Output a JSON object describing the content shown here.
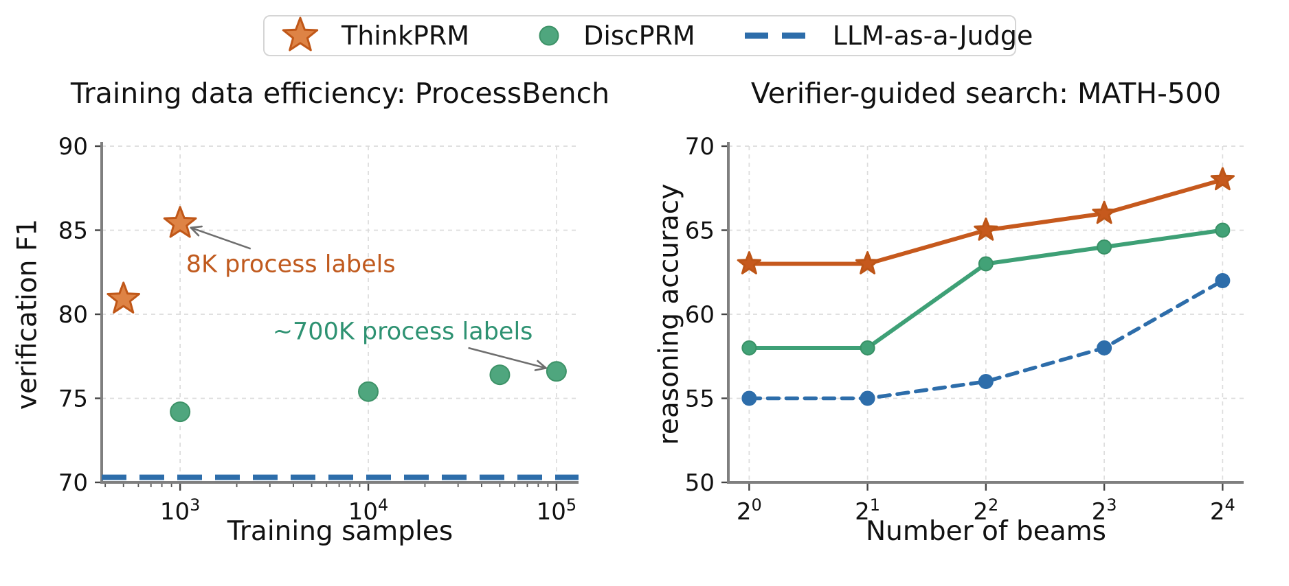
{
  "legend": {
    "items": [
      {
        "label": "ThinkPRM",
        "marker": "star",
        "fill": "#DE8345",
        "edge": "#C05718"
      },
      {
        "label": "DiscPRM",
        "marker": "circle",
        "fill": "#4FA67E",
        "edge": "#3D9267"
      },
      {
        "label": "LLM-as-a-Judge",
        "marker": "dashed-line",
        "color": "#2D6DAA"
      }
    ]
  },
  "chart_data": [
    {
      "type": "scatter",
      "title": "Training data efficiency: ProcessBench",
      "xlabel": "Training samples",
      "ylabel": "verification F1",
      "x_scale": "log10",
      "xlim": [
        383,
        131000
      ],
      "ylim": [
        70,
        90
      ],
      "grid": true,
      "legend_position": "top-outside",
      "y_ticks": [
        70,
        75,
        80,
        85,
        90
      ],
      "x_ticks": [
        {
          "v": 1000,
          "base": "10",
          "exp": "3"
        },
        {
          "v": 10000,
          "base": "10",
          "exp": "4"
        },
        {
          "v": 100000,
          "base": "10",
          "exp": "5"
        }
      ],
      "series": [
        {
          "name": "ThinkPRM",
          "marker": "star",
          "marker_size": 24,
          "marker_fill": "#DE8345",
          "marker_edge": "#C05718",
          "line": false,
          "points": [
            [
              500,
              80.9
            ],
            [
              1000,
              85.4
            ]
          ]
        },
        {
          "name": "DiscPRM",
          "marker": "circle",
          "marker_size": 14,
          "marker_fill": "#4FA67E",
          "marker_edge": "#3D9267",
          "line": false,
          "points": [
            [
              1000,
              74.2
            ],
            [
              10000,
              75.4
            ],
            [
              50000,
              76.4
            ],
            [
              100000,
              76.6
            ]
          ]
        },
        {
          "name": "LLM-as-a-Judge",
          "hline": 70.3,
          "color": "#2D6DAA",
          "width": 8,
          "dash": "36 19"
        }
      ],
      "annotations": [
        {
          "text": "8K process labels",
          "color": "#C05A1E",
          "x": 1075,
          "y": 83.0,
          "arrow": {
            "from": [
              2370,
              83.9
            ],
            "to": [
              1140,
              85.15
            ]
          }
        },
        {
          "text": "~700K process labels",
          "color": "#2E9272",
          "x": 3100,
          "y": 79.0,
          "arrow": {
            "from": [
              34000,
              78.0
            ],
            "to": [
              88000,
              76.8
            ]
          }
        }
      ]
    },
    {
      "type": "line",
      "title": "Verifier-guided search: MATH-500",
      "xlabel": "Number of beams",
      "ylabel": "reasoning accuracy",
      "x_scale": "log2",
      "xlim": [
        0.885,
        18.1
      ],
      "ylim": [
        50,
        70
      ],
      "grid": true,
      "y_ticks": [
        50,
        55,
        60,
        65,
        70
      ],
      "x_ticks": [
        {
          "v": 1,
          "base": "2",
          "exp": "0"
        },
        {
          "v": 2,
          "base": "2",
          "exp": "1"
        },
        {
          "v": 4,
          "base": "2",
          "exp": "2"
        },
        {
          "v": 8,
          "base": "2",
          "exp": "3"
        },
        {
          "v": 16,
          "base": "2",
          "exp": "4"
        }
      ],
      "series": [
        {
          "name": "ThinkPRM",
          "marker": "star",
          "marker_size": 17,
          "marker_fill": "#C6591D",
          "marker_edge": "#BD5517",
          "color": "#C6591D",
          "width": 6,
          "points": [
            [
              1,
              63
            ],
            [
              2,
              63
            ],
            [
              4,
              65
            ],
            [
              8,
              66
            ],
            [
              16,
              68
            ]
          ]
        },
        {
          "name": "DiscPRM",
          "marker": "circle",
          "marker_size": 10,
          "marker_fill": "#42A277",
          "marker_edge": "#389166",
          "color": "#3EA076",
          "width": 6,
          "points": [
            [
              1,
              58
            ],
            [
              2,
              58
            ],
            [
              4,
              63
            ],
            [
              8,
              64
            ],
            [
              16,
              65
            ]
          ]
        },
        {
          "name": "LLM-as-a-Judge",
          "marker": "circle",
          "marker_size": 10,
          "marker_fill": "#2D6DAA",
          "marker_edge": "#2D6DAA",
          "color": "#2D6DAA",
          "width": 5.5,
          "dash": "16 11",
          "points": [
            [
              1,
              55
            ],
            [
              2,
              55
            ],
            [
              4,
              56
            ],
            [
              8,
              58
            ],
            [
              16,
              62
            ]
          ]
        }
      ]
    }
  ]
}
